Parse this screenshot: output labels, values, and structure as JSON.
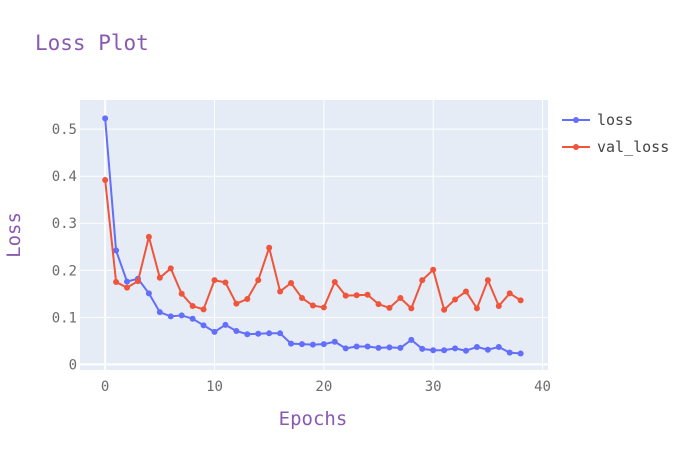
{
  "chart_data": {
    "type": "line",
    "title": "Loss Plot",
    "xlabel": "Epochs",
    "ylabel": "Loss",
    "xlim": [
      -2.3,
      40.5
    ],
    "ylim": [
      -0.012,
      0.562
    ],
    "xticks": [
      0,
      10,
      20,
      30,
      40
    ],
    "yticks": [
      0,
      0.1,
      0.2,
      0.3,
      0.4,
      0.5
    ],
    "ytick_labels": [
      "0",
      "0.1",
      "0.2",
      "0.3",
      "0.4",
      "0.5"
    ],
    "grid": true,
    "legend_position": "top-right",
    "plot_bg": "#E5ECF6",
    "x": [
      0,
      1,
      2,
      3,
      4,
      5,
      6,
      7,
      8,
      9,
      10,
      11,
      12,
      13,
      14,
      15,
      16,
      17,
      18,
      19,
      20,
      21,
      22,
      23,
      24,
      25,
      26,
      27,
      28,
      29,
      30,
      31,
      32,
      33,
      34,
      35,
      36,
      37,
      38
    ],
    "series": [
      {
        "name": "loss",
        "color": "#636EFA",
        "values": [
          0.523,
          0.242,
          0.176,
          0.182,
          0.151,
          0.111,
          0.102,
          0.104,
          0.097,
          0.083,
          0.069,
          0.084,
          0.071,
          0.064,
          0.065,
          0.066,
          0.066,
          0.044,
          0.043,
          0.042,
          0.043,
          0.048,
          0.034,
          0.038,
          0.038,
          0.035,
          0.036,
          0.035,
          0.052,
          0.033,
          0.03,
          0.03,
          0.034,
          0.029,
          0.037,
          0.031,
          0.037,
          0.025,
          0.023
        ]
      },
      {
        "name": "val_loss",
        "color": "#EF553B",
        "values": [
          0.392,
          0.175,
          0.163,
          0.177,
          0.271,
          0.184,
          0.204,
          0.15,
          0.124,
          0.117,
          0.179,
          0.174,
          0.129,
          0.139,
          0.179,
          0.248,
          0.155,
          0.173,
          0.141,
          0.125,
          0.121,
          0.175,
          0.146,
          0.147,
          0.148,
          0.128,
          0.12,
          0.141,
          0.119,
          0.179,
          0.201,
          0.116,
          0.138,
          0.155,
          0.119,
          0.179,
          0.124,
          0.151,
          0.136
        ]
      }
    ]
  }
}
